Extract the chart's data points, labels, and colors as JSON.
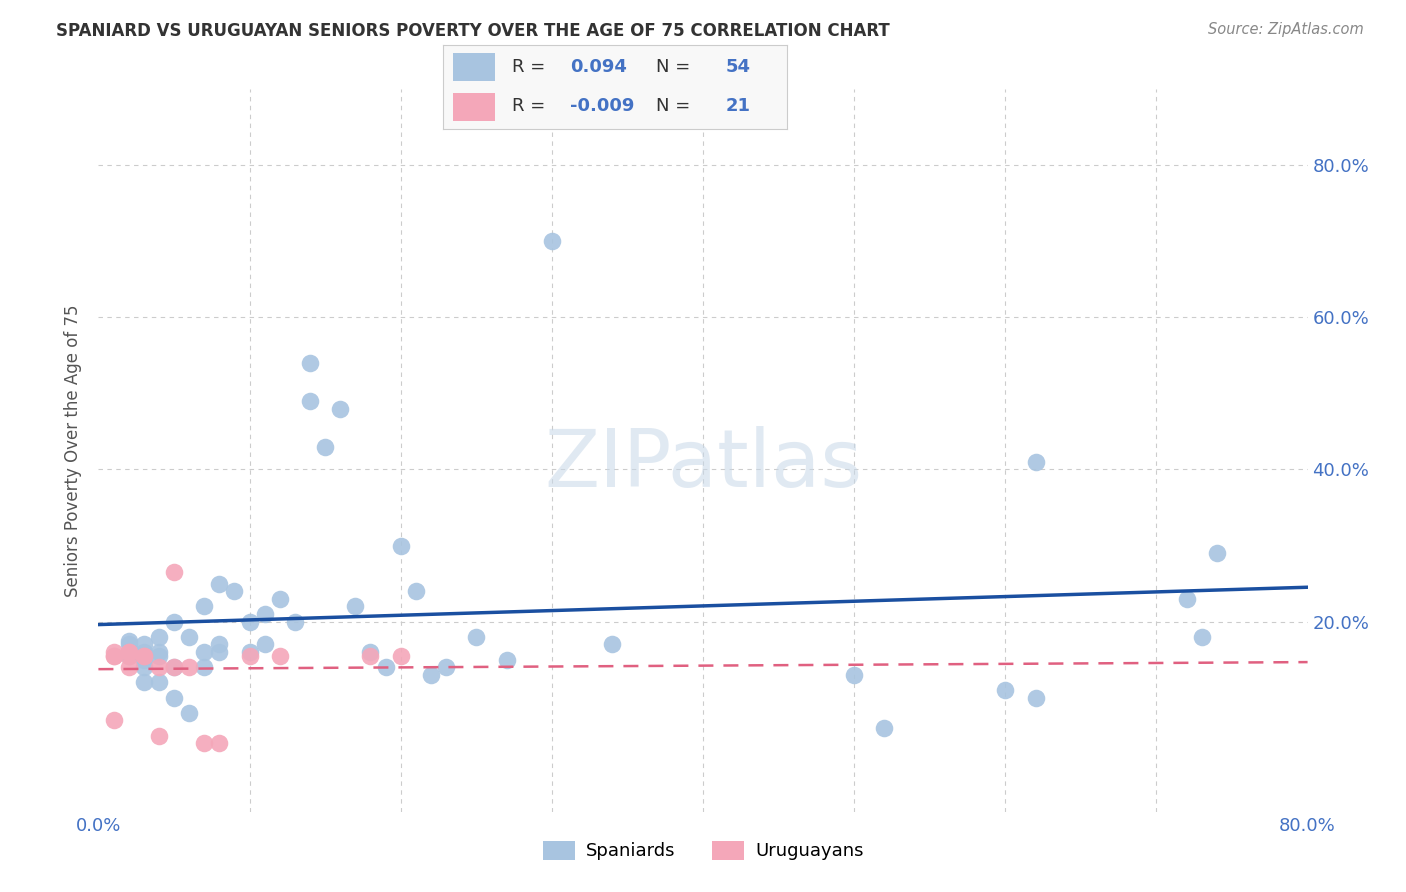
{
  "title": "SPANIARD VS URUGUAYAN SENIORS POVERTY OVER THE AGE OF 75 CORRELATION CHART",
  "source": "Source: ZipAtlas.com",
  "ylabel": "Seniors Poverty Over the Age of 75",
  "xlim": [
    0.0,
    0.8
  ],
  "ylim": [
    -0.05,
    0.9
  ],
  "spaniards_x": [
    0.02,
    0.02,
    0.02,
    0.02,
    0.03,
    0.03,
    0.03,
    0.03,
    0.03,
    0.04,
    0.04,
    0.04,
    0.04,
    0.05,
    0.05,
    0.05,
    0.06,
    0.06,
    0.07,
    0.07,
    0.07,
    0.08,
    0.08,
    0.08,
    0.09,
    0.1,
    0.1,
    0.11,
    0.11,
    0.12,
    0.13,
    0.14,
    0.14,
    0.15,
    0.16,
    0.17,
    0.18,
    0.19,
    0.2,
    0.21,
    0.22,
    0.23,
    0.25,
    0.27,
    0.3,
    0.34,
    0.5,
    0.52,
    0.6,
    0.62,
    0.62,
    0.72,
    0.73,
    0.74
  ],
  "spaniards_y": [
    0.155,
    0.16,
    0.17,
    0.175,
    0.12,
    0.14,
    0.15,
    0.16,
    0.17,
    0.12,
    0.155,
    0.16,
    0.18,
    0.1,
    0.14,
    0.2,
    0.08,
    0.18,
    0.14,
    0.16,
    0.22,
    0.16,
    0.17,
    0.25,
    0.24,
    0.16,
    0.2,
    0.17,
    0.21,
    0.23,
    0.2,
    0.49,
    0.54,
    0.43,
    0.48,
    0.22,
    0.16,
    0.14,
    0.3,
    0.24,
    0.13,
    0.14,
    0.18,
    0.15,
    0.7,
    0.17,
    0.13,
    0.06,
    0.11,
    0.1,
    0.41,
    0.23,
    0.18,
    0.29
  ],
  "uruguayans_x": [
    0.01,
    0.01,
    0.01,
    0.01,
    0.02,
    0.02,
    0.02,
    0.02,
    0.03,
    0.03,
    0.04,
    0.04,
    0.05,
    0.05,
    0.06,
    0.07,
    0.08,
    0.1,
    0.12,
    0.18,
    0.2
  ],
  "uruguayans_y": [
    0.155,
    0.155,
    0.16,
    0.07,
    0.14,
    0.155,
    0.16,
    0.16,
    0.155,
    0.155,
    0.14,
    0.05,
    0.265,
    0.14,
    0.14,
    0.04,
    0.04,
    0.155,
    0.155,
    0.155,
    0.155
  ],
  "spaniard_color": "#a8c4e0",
  "uruguayan_color": "#f4a7b9",
  "spaniard_line_color": "#1a4fa0",
  "uruguayan_line_color": "#e06080",
  "R_spaniard": "0.094",
  "N_spaniard": "54",
  "R_uruguayan": "-0.009",
  "N_uruguayan": "21",
  "watermark": "ZIPatlas",
  "background_color": "#ffffff",
  "grid_color": "#cccccc",
  "tick_color": "#4472c4",
  "title_color": "#333333",
  "source_color": "#888888",
  "ylabel_color": "#555555"
}
